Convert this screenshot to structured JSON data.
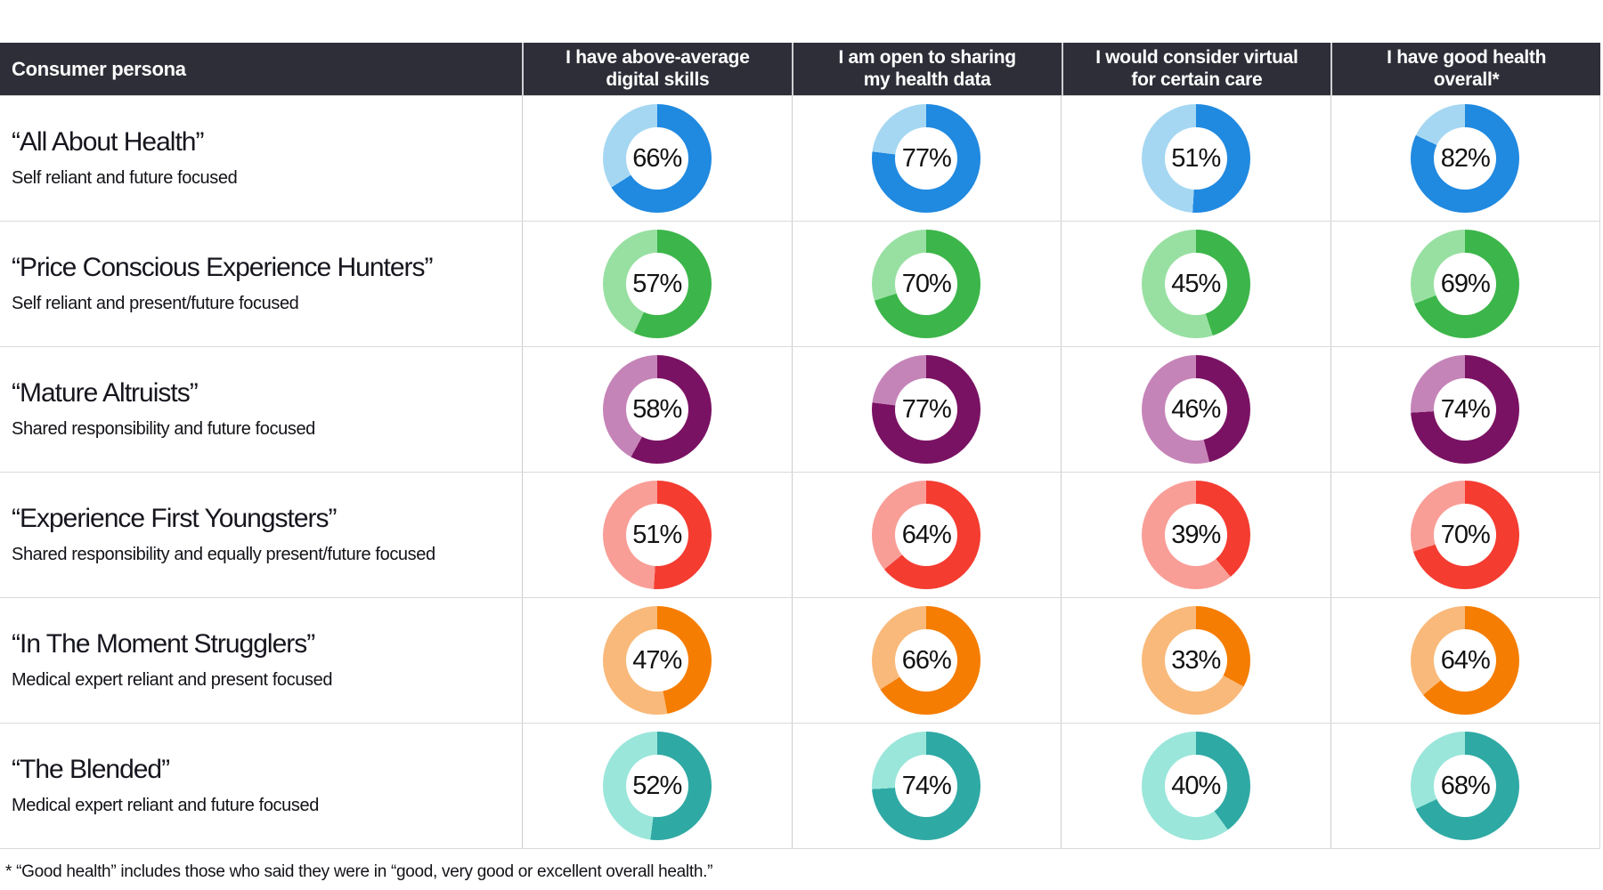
{
  "table": {
    "persona_header": "Consumer persona"
  },
  "footnote": "*  “Good health” includes those who said they were in “good, very good or excellent overall health.”",
  "chart_data": {
    "type": "pie",
    "variant": "donut-matrix",
    "unit": "%",
    "title": "Consumer persona",
    "categories": [
      "I have above-average\ndigital skills",
      "I am open to sharing\nmy health data",
      "I would consider virtual\nfor certain care",
      "I have good health\noverall*"
    ],
    "series": [
      {
        "name": "“All About Health”",
        "subtitle": "Self reliant and future focused",
        "values": [
          66,
          77,
          51,
          82
        ],
        "color_dark": "#2089e0",
        "color_light": "#a5d7f2"
      },
      {
        "name": "“Price Conscious Experience Hunters”",
        "subtitle": "Self reliant and present/future focused",
        "values": [
          57,
          70,
          45,
          69
        ],
        "color_dark": "#3cb54a",
        "color_light": "#98e0a2"
      },
      {
        "name": "“Mature Altruists”",
        "subtitle": "Shared responsibility and future focused",
        "values": [
          58,
          77,
          46,
          74
        ],
        "color_dark": "#7a1263",
        "color_light": "#c584b8"
      },
      {
        "name": "“Experience First Youngsters”",
        "subtitle": "Shared responsibility and equally present/future focused",
        "values": [
          51,
          64,
          39,
          70
        ],
        "color_dark": "#f43c31",
        "color_light": "#f99e97"
      },
      {
        "name": "“In The Moment Strugglers”",
        "subtitle": "Medical expert reliant and present focused",
        "values": [
          47,
          66,
          33,
          64
        ],
        "color_dark": "#f57d01",
        "color_light": "#f9b97a"
      },
      {
        "name": "“The Blended”",
        "subtitle": "Medical expert reliant and future focused",
        "values": [
          52,
          74,
          40,
          68
        ],
        "color_dark": "#2fa9a4",
        "color_light": "#9ae6da"
      }
    ],
    "legend": "inner label shows percent agreeing; dark segment = value, light segment = remainder, clockwise from top",
    "grid": "off"
  }
}
